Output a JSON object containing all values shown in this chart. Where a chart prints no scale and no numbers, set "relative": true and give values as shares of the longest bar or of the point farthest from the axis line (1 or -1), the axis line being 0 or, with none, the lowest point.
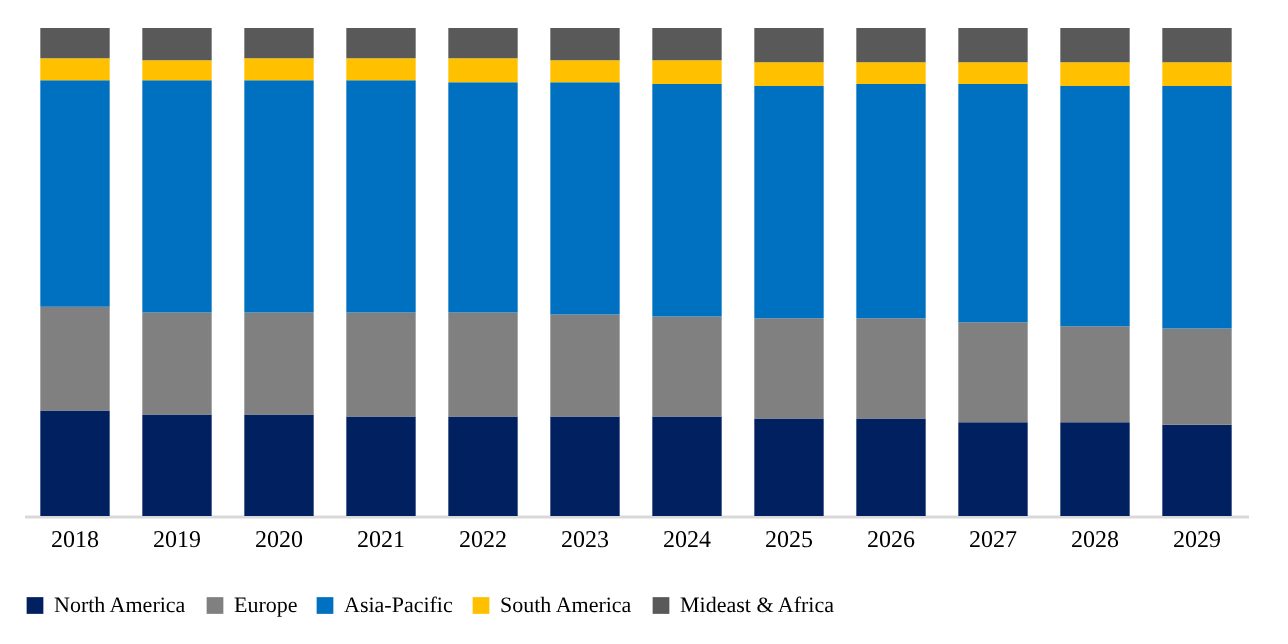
{
  "chart_data": {
    "type": "bar",
    "stacked": true,
    "relative": true,
    "legend": "bottom",
    "categories": [
      "2018",
      "2019",
      "2020",
      "2021",
      "2022",
      "2023",
      "2024",
      "2025",
      "2026",
      "2027",
      "2028",
      "2029"
    ],
    "series": [
      {
        "name": "North America",
        "color": "#002060",
        "values": [
          0.216,
          0.208,
          0.208,
          0.204,
          0.204,
          0.204,
          0.204,
          0.2,
          0.2,
          0.192,
          0.192,
          0.187
        ]
      },
      {
        "name": "Europe",
        "color": "#808080",
        "values": [
          0.213,
          0.209,
          0.209,
          0.213,
          0.213,
          0.209,
          0.205,
          0.205,
          0.205,
          0.205,
          0.197,
          0.197
        ]
      },
      {
        "name": "Asia-Pacific",
        "color": "#0070c0",
        "values": [
          0.464,
          0.476,
          0.476,
          0.476,
          0.472,
          0.476,
          0.476,
          0.476,
          0.48,
          0.488,
          0.492,
          0.497
        ]
      },
      {
        "name": "South America",
        "color": "#ffc000",
        "values": [
          0.045,
          0.041,
          0.045,
          0.045,
          0.049,
          0.045,
          0.049,
          0.049,
          0.045,
          0.045,
          0.049,
          0.049
        ]
      },
      {
        "name": "Mideast & Africa",
        "color": "#595959",
        "values": [
          0.062,
          0.066,
          0.062,
          0.062,
          0.062,
          0.066,
          0.066,
          0.07,
          0.07,
          0.07,
          0.07,
          0.07
        ]
      }
    ]
  }
}
